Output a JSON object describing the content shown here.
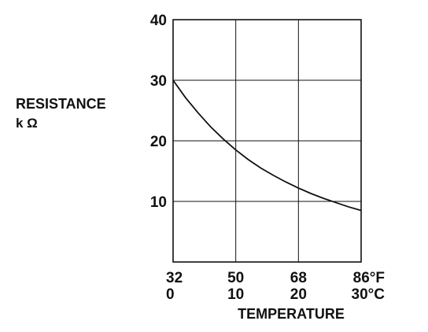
{
  "chart_data": {
    "type": "line",
    "title": "",
    "ylabel": "RESISTANCE",
    "yunit": "k Ω",
    "xlabel": "TEMPERATURE",
    "x_ticks_f": [
      "32",
      "50",
      "68",
      "86°F"
    ],
    "x_ticks_c": [
      "0",
      "10",
      "20",
      "30°C"
    ],
    "x_ticks_c_values": [
      0,
      10,
      20,
      30
    ],
    "y_ticks": [
      {
        "label": "10",
        "value": 10
      },
      {
        "label": "20",
        "value": 20
      },
      {
        "label": "30",
        "value": 30
      },
      {
        "label": "40",
        "value": 40
      }
    ],
    "xlim": [
      0,
      30
    ],
    "ylim": [
      0,
      40
    ],
    "grid": true,
    "series": [
      {
        "x": [
          0,
          2,
          4,
          6,
          8,
          10,
          12,
          14,
          16,
          18,
          20,
          22,
          24,
          26,
          28,
          30
        ],
        "y": [
          30,
          27.1,
          24.6,
          22.3,
          20.3,
          18.5,
          16.9,
          15.5,
          14.3,
          13.2,
          12.2,
          11.3,
          10.5,
          9.8,
          9.1,
          8.5
        ]
      }
    ],
    "colors": {
      "line": "#111111",
      "grid": "#111111"
    }
  }
}
